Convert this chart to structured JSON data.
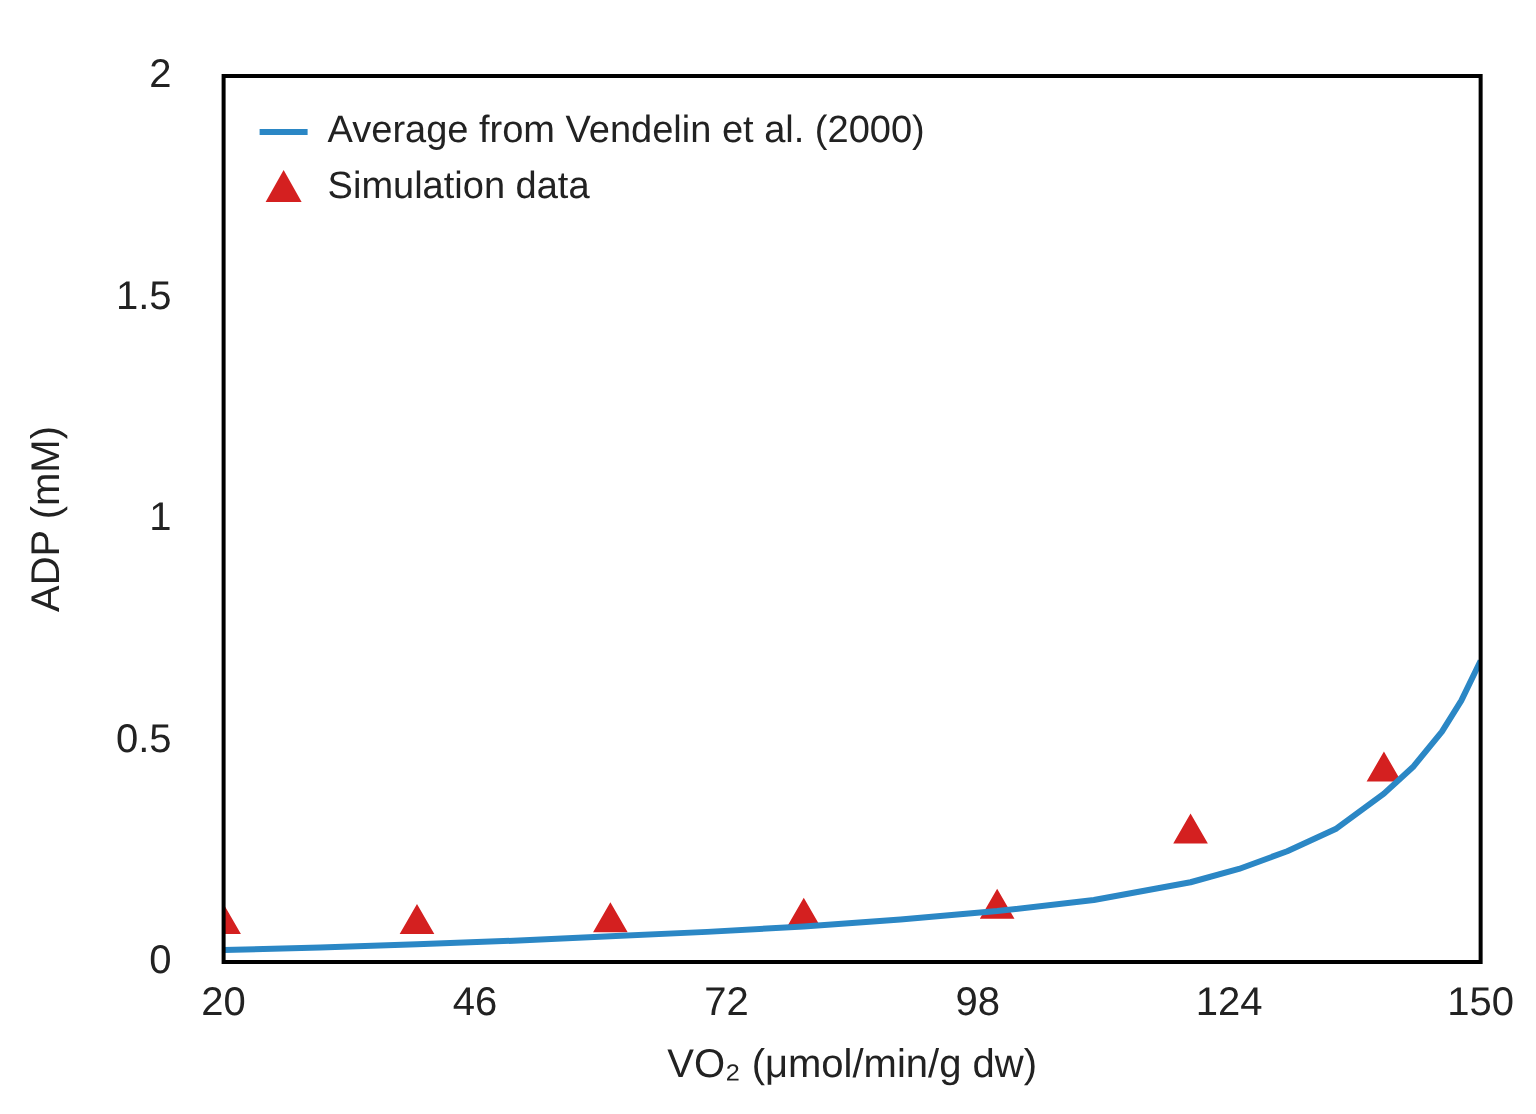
{
  "chart_data": {
    "type": "scatter",
    "xlabel": "VO₂ (μmol/min/g dw)",
    "ylabel": "ADP (mM)",
    "xlim": [
      20,
      150
    ],
    "xticks": [
      20,
      46,
      72,
      98,
      124,
      150
    ],
    "ylim": [
      0,
      2
    ],
    "yticks": [
      0,
      0.5,
      1,
      1.5,
      2
    ],
    "grid": false,
    "legend": "top left",
    "series": [
      {
        "name": "Average from Vendelin et al. (2000)",
        "type": "line",
        "color": "#2b87c5",
        "marker": "none",
        "x": [
          20,
          30,
          40,
          50,
          60,
          70,
          80,
          90,
          100,
          110,
          120,
          125,
          130,
          135,
          140,
          143,
          146,
          148,
          150
        ],
        "values": [
          0.027,
          0.033,
          0.04,
          0.048,
          0.058,
          0.068,
          0.08,
          0.096,
          0.115,
          0.14,
          0.18,
          0.21,
          0.25,
          0.3,
          0.38,
          0.44,
          0.52,
          0.59,
          0.68
        ]
      },
      {
        "name": "Simulation data",
        "color": "#d42020",
        "marker": "triangle",
        "x": [
          20,
          40,
          60,
          80,
          100,
          120,
          140
        ],
        "values": [
          0.086,
          0.086,
          0.09,
          0.1,
          0.12,
          0.29,
          0.43
        ]
      }
    ]
  }
}
